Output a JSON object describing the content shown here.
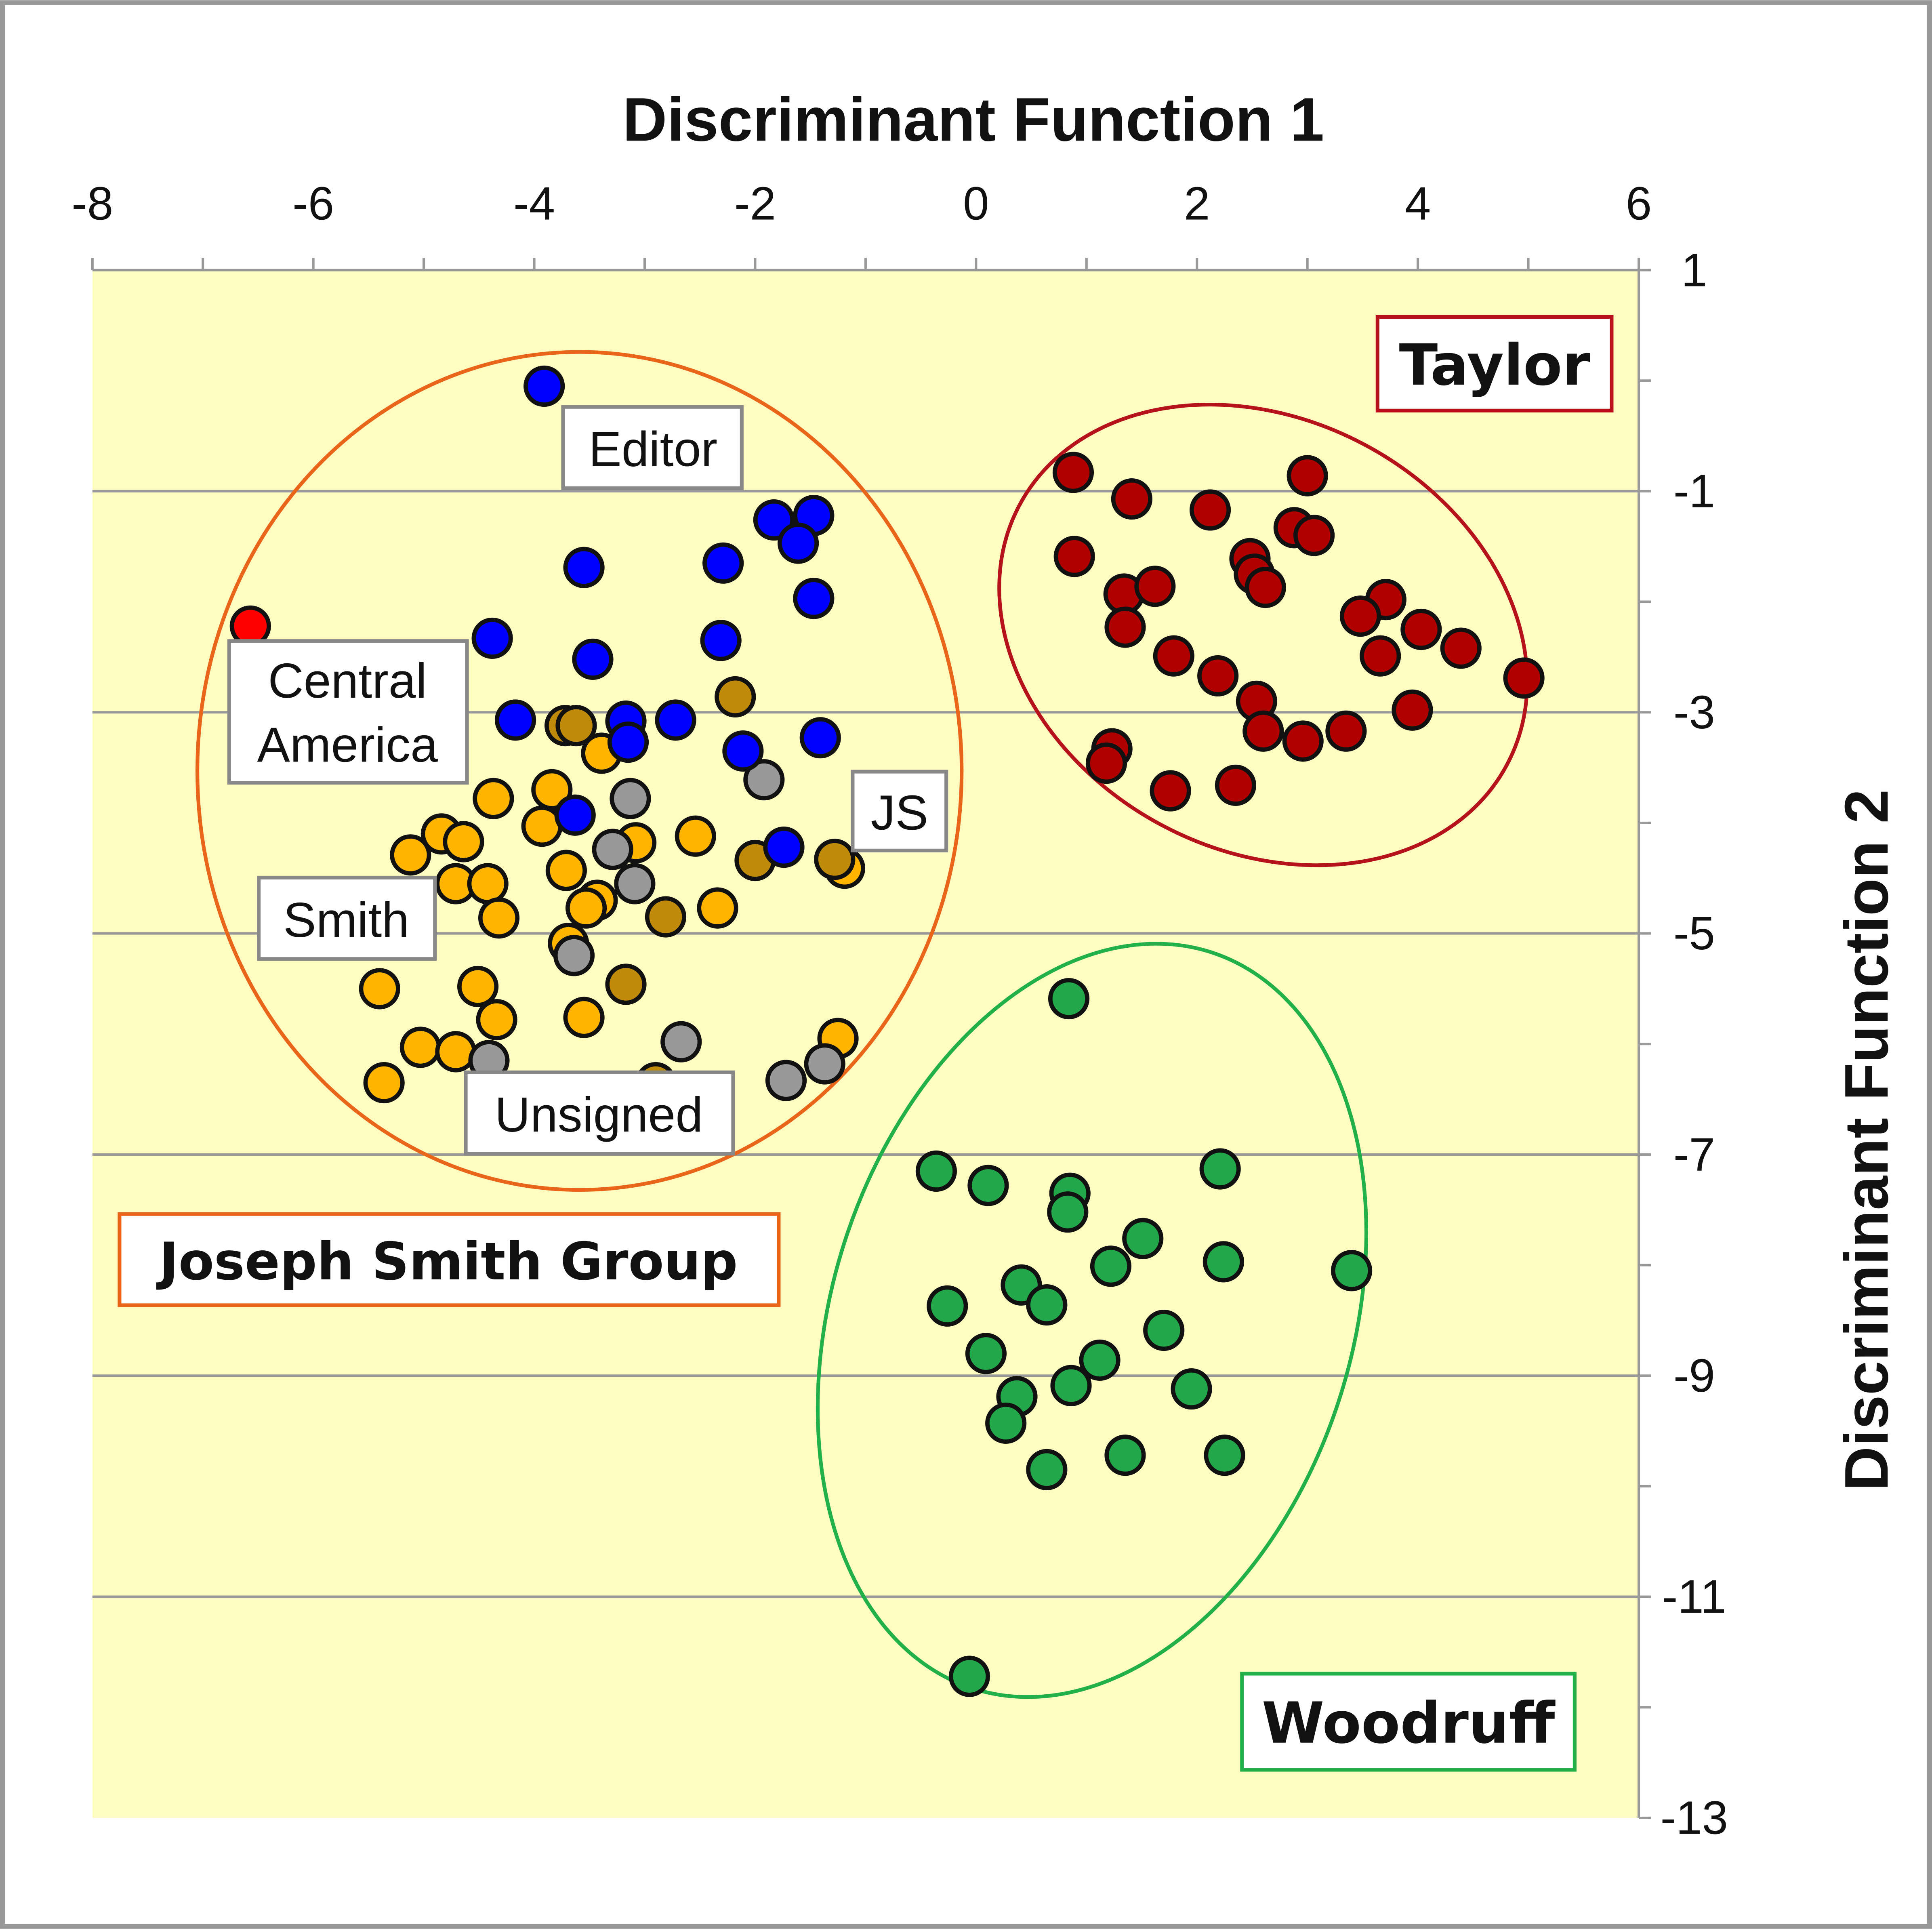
{
  "chart_data": {
    "type": "scatter",
    "xlabel": "Discriminant Function 1",
    "ylabel": "Discriminant Function 2",
    "xlim": [
      -8,
      6
    ],
    "ylim": [
      -13,
      1
    ],
    "xticks": [
      -8,
      -6,
      -4,
      -2,
      0,
      2,
      4,
      6
    ],
    "yticks": [
      1,
      -1,
      -3,
      -5,
      -7,
      -9,
      -11,
      -13
    ],
    "grid": "horizontal at odd y values",
    "colors": {
      "plot_bg": "#fffcc2",
      "grid": "#999999"
    },
    "series": [
      {
        "name": "Smith",
        "color": "#ffb400",
        "points": [
          [
            -3.39,
            -3.37
          ],
          [
            -4.37,
            -3.78
          ],
          [
            -3.84,
            -3.7
          ],
          [
            -3.93,
            -4.03
          ],
          [
            -4.84,
            -4.1
          ],
          [
            -4.64,
            -4.17
          ],
          [
            -5.12,
            -4.29
          ],
          [
            -4.71,
            -4.55
          ],
          [
            -4.42,
            -4.55
          ],
          [
            -4.32,
            -4.86
          ],
          [
            -3.71,
            -4.43
          ],
          [
            -3.43,
            -4.7
          ],
          [
            -3.53,
            -4.77
          ],
          [
            -3.08,
            -4.18
          ],
          [
            -2.54,
            -4.12
          ],
          [
            -2.34,
            -4.77
          ],
          [
            -3.69,
            -5.09
          ],
          [
            -5.4,
            -5.5
          ],
          [
            -4.51,
            -5.48
          ],
          [
            -4.34,
            -5.78
          ],
          [
            -3.55,
            -5.76
          ],
          [
            -5.03,
            -6.03
          ],
          [
            -4.71,
            -6.07
          ],
          [
            -5.36,
            -6.35
          ],
          [
            -1.25,
            -5.95
          ],
          [
            -1.19,
            -4.41
          ]
        ]
      },
      {
        "name": "JS",
        "color": "#c08a0a",
        "points": [
          [
            -2.18,
            -2.86
          ],
          [
            -3.72,
            -3.12
          ],
          [
            -3.62,
            -3.12
          ],
          [
            -2.0,
            -4.34
          ],
          [
            -1.28,
            -4.33
          ],
          [
            -2.81,
            -4.85
          ],
          [
            -3.17,
            -5.46
          ],
          [
            -2.9,
            -6.35
          ]
        ]
      },
      {
        "name": "Unsigned",
        "color": "#999999",
        "points": [
          [
            -1.92,
            -3.61
          ],
          [
            -3.13,
            -3.78
          ],
          [
            -3.29,
            -4.24
          ],
          [
            -3.09,
            -4.55
          ],
          [
            -3.64,
            -5.2
          ],
          [
            -2.67,
            -5.98
          ],
          [
            -4.41,
            -6.15
          ],
          [
            -1.72,
            -6.33
          ],
          [
            -1.37,
            -6.18
          ]
        ]
      },
      {
        "name": "Editor",
        "color": "#0000ff",
        "points": [
          [
            -3.91,
            -0.05
          ],
          [
            -1.83,
            -1.26
          ],
          [
            -1.47,
            -1.22
          ],
          [
            -1.61,
            -1.47
          ],
          [
            -3.55,
            -1.69
          ],
          [
            -2.29,
            -1.65
          ],
          [
            -1.47,
            -1.97
          ],
          [
            -4.38,
            -2.33
          ],
          [
            -3.47,
            -2.52
          ],
          [
            -2.31,
            -2.35
          ],
          [
            -4.17,
            -3.07
          ],
          [
            -3.17,
            -3.08
          ],
          [
            -2.72,
            -3.07
          ],
          [
            -3.15,
            -3.27
          ],
          [
            -2.11,
            -3.35
          ],
          [
            -1.41,
            -3.23
          ],
          [
            -3.63,
            -3.93
          ],
          [
            -1.74,
            -4.22
          ]
        ]
      },
      {
        "name": "Central America",
        "color": "#ff0000",
        "points": [
          [
            -6.57,
            -2.22
          ]
        ]
      },
      {
        "name": "Taylor",
        "color": "#b00000",
        "points": [
          [
            0.88,
            -0.83
          ],
          [
            1.41,
            -1.07
          ],
          [
            2.12,
            -1.17
          ],
          [
            3.0,
            -0.86
          ],
          [
            2.88,
            -1.33
          ],
          [
            3.06,
            -1.4
          ],
          [
            0.89,
            -1.59
          ],
          [
            2.48,
            -1.61
          ],
          [
            2.52,
            -1.75
          ],
          [
            2.62,
            -1.87
          ],
          [
            1.34,
            -1.93
          ],
          [
            1.62,
            -1.86
          ],
          [
            1.35,
            -2.23
          ],
          [
            3.71,
            -1.98
          ],
          [
            3.48,
            -2.13
          ],
          [
            4.03,
            -2.25
          ],
          [
            4.39,
            -2.42
          ],
          [
            3.66,
            -2.49
          ],
          [
            1.79,
            -2.49
          ],
          [
            2.19,
            -2.67
          ],
          [
            4.96,
            -2.69
          ],
          [
            2.54,
            -2.9
          ],
          [
            3.95,
            -2.98
          ],
          [
            2.6,
            -3.17
          ],
          [
            2.96,
            -3.26
          ],
          [
            3.35,
            -3.17
          ],
          [
            1.23,
            -3.33
          ],
          [
            1.18,
            -3.46
          ],
          [
            1.76,
            -3.71
          ],
          [
            2.35,
            -3.66
          ]
        ]
      },
      {
        "name": "Woodruff",
        "color": "#22a84a",
        "points": [
          [
            0.84,
            -5.59
          ],
          [
            -0.36,
            -7.15
          ],
          [
            0.11,
            -7.28
          ],
          [
            0.85,
            -7.35
          ],
          [
            0.83,
            -7.52
          ],
          [
            2.21,
            -7.13
          ],
          [
            1.51,
            -7.76
          ],
          [
            1.22,
            -8.01
          ],
          [
            2.24,
            -7.97
          ],
          [
            3.4,
            -8.05
          ],
          [
            0.41,
            -8.18
          ],
          [
            0.64,
            -8.36
          ],
          [
            -0.26,
            -8.37
          ],
          [
            1.7,
            -8.59
          ],
          [
            0.09,
            -8.8
          ],
          [
            1.12,
            -8.86
          ],
          [
            0.86,
            -9.09
          ],
          [
            1.95,
            -9.12
          ],
          [
            0.37,
            -9.19
          ],
          [
            0.27,
            -9.43
          ],
          [
            1.35,
            -9.72
          ],
          [
            2.25,
            -9.72
          ],
          [
            0.64,
            -9.85
          ],
          [
            -0.06,
            -11.72
          ]
        ]
      }
    ],
    "groups": [
      {
        "name": "Joseph Smith Group",
        "color": "#e8651a",
        "center": [
          -3.59,
          -3.53
        ],
        "radii": [
          3.46,
          3.79
        ],
        "angle": 0
      },
      {
        "name": "Taylor",
        "color": "#b5121b",
        "center": [
          2.6,
          -2.3
        ],
        "radii": [
          2.5,
          1.95
        ],
        "angle": 28
      },
      {
        "name": "Woodruff",
        "color": "#22b04a",
        "center": [
          1.05,
          -8.5
        ],
        "radii": [
          2.35,
          3.5
        ],
        "angle": 18
      }
    ],
    "annotations": {
      "editor": "Editor",
      "central_america_1": "Central",
      "central_america_2": "America",
      "js": "JS",
      "smith": "Smith",
      "unsigned": "Unsigned",
      "taylor": "Taylor",
      "joseph_smith_group": "Joseph Smith Group",
      "woodruff": "Woodruff"
    }
  }
}
